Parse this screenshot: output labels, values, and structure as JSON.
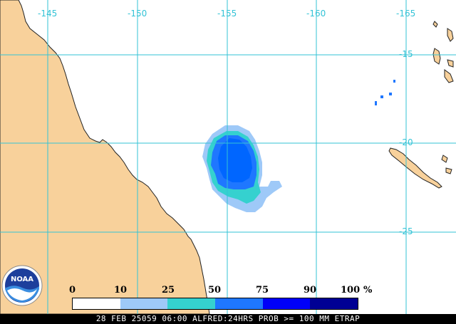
{
  "map": {
    "lon_labels": [
      "-145",
      "-150",
      "-155",
      "-160",
      "-165"
    ],
    "lat_labels": [
      "-15",
      "-20",
      "-25"
    ],
    "colors": {
      "land": "#f8d19b",
      "ocean": "#ffffff",
      "grid": "#33c3d6",
      "coast": "#222222"
    }
  },
  "legend": {
    "ticks": [
      "0",
      "10",
      "25",
      "50",
      "75",
      "90",
      "100"
    ],
    "unit": "%",
    "colors": [
      "#ffffff",
      "#9ec9f8",
      "#35d1cf",
      "#1f77ff",
      "#0000f8",
      "#000094"
    ]
  },
  "footer": {
    "text": "28 FEB 25059 06:00 ALFRED:24HRS PROB >= 100 MM ETRAP"
  },
  "logo": {
    "text": "NOAA"
  }
}
